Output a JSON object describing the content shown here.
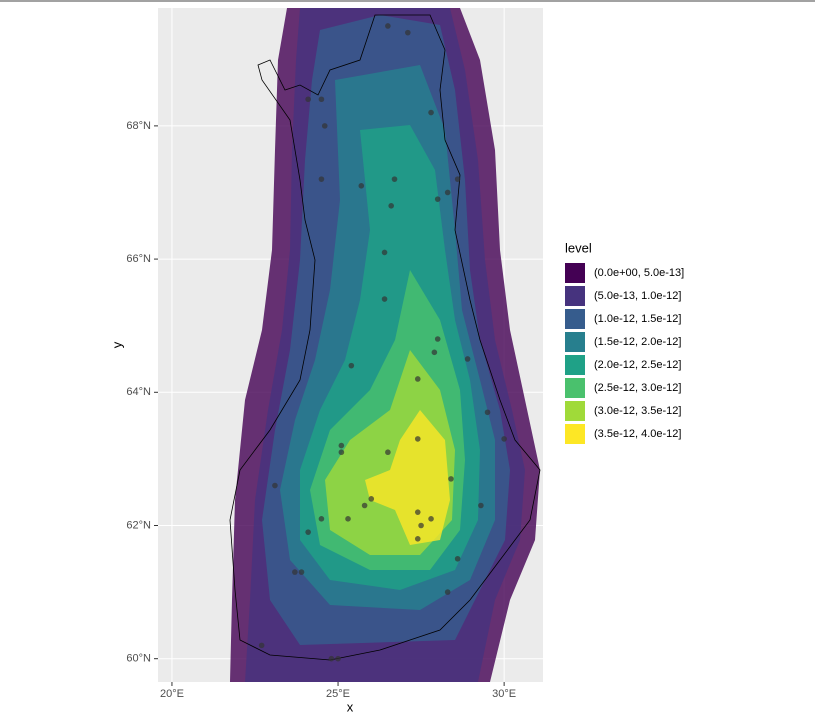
{
  "chart_data": {
    "type": "contour",
    "x_label": "x",
    "y_label": "y",
    "legend_title": "level",
    "legend_position": "right",
    "grid": true,
    "xlim": [
      19.58,
      31.17
    ],
    "ylim": [
      59.65,
      69.77
    ],
    "xticks": [
      {
        "value": 20,
        "label": "20°E"
      },
      {
        "value": 25,
        "label": "25°E"
      },
      {
        "value": 30,
        "label": "30°E"
      }
    ],
    "yticks": [
      {
        "value": 60,
        "label": "60°N"
      },
      {
        "value": 62,
        "label": "62°N"
      },
      {
        "value": 64,
        "label": "64°N"
      },
      {
        "value": 66,
        "label": "66°N"
      },
      {
        "value": 68,
        "label": "68°N"
      }
    ],
    "series": [
      {
        "name": "(0.0e+00, 5.0e-13]",
        "color": "#440154"
      },
      {
        "name": "(5.0e-13, 1.0e-12]",
        "color": "#46337e"
      },
      {
        "name": "(1.0e-12, 1.5e-12]",
        "color": "#365c8d"
      },
      {
        "name": "(1.5e-12, 2.0e-12]",
        "color": "#277f8e"
      },
      {
        "name": "(2.0e-12, 2.5e-12]",
        "color": "#1fa187"
      },
      {
        "name": "(2.5e-12, 3.0e-12]",
        "color": "#4ac16d"
      },
      {
        "name": "(3.0e-12, 3.5e-12]",
        "color": "#a0da39"
      },
      {
        "name": "(3.5e-12, 4.0e-12]",
        "color": "#fde725"
      }
    ],
    "points": {
      "color": "#333333",
      "x": [
        26.5,
        27.1,
        24.1,
        24.5,
        27.8,
        24.6,
        24.5,
        26.7,
        25.7,
        28.6,
        28.3,
        28.0,
        26.6,
        26.4,
        26.4,
        28.0,
        27.9,
        28.9,
        25.4,
        27.4,
        29.5,
        30.0,
        27.4,
        26.5,
        25.1,
        25.1,
        28.4,
        23.1,
        29.3,
        26.0,
        25.8,
        27.4,
        27.8,
        27.5,
        24.5,
        25.3,
        24.1,
        27.4,
        28.6,
        23.9,
        23.7,
        28.3,
        24.8,
        25.0,
        22.7
      ],
      "y": [
        69.5,
        69.4,
        68.4,
        68.4,
        68.2,
        68.0,
        67.2,
        67.2,
        67.1,
        67.2,
        67.0,
        66.9,
        66.8,
        66.1,
        65.4,
        64.8,
        64.6,
        64.5,
        64.4,
        64.2,
        63.7,
        63.3,
        63.3,
        63.1,
        63.2,
        63.1,
        62.7,
        62.6,
        62.3,
        62.4,
        62.3,
        62.2,
        62.1,
        62.0,
        62.1,
        62.1,
        61.9,
        61.8,
        61.5,
        61.3,
        61.3,
        61.0,
        60.0,
        60.0,
        60.2
      ]
    }
  }
}
